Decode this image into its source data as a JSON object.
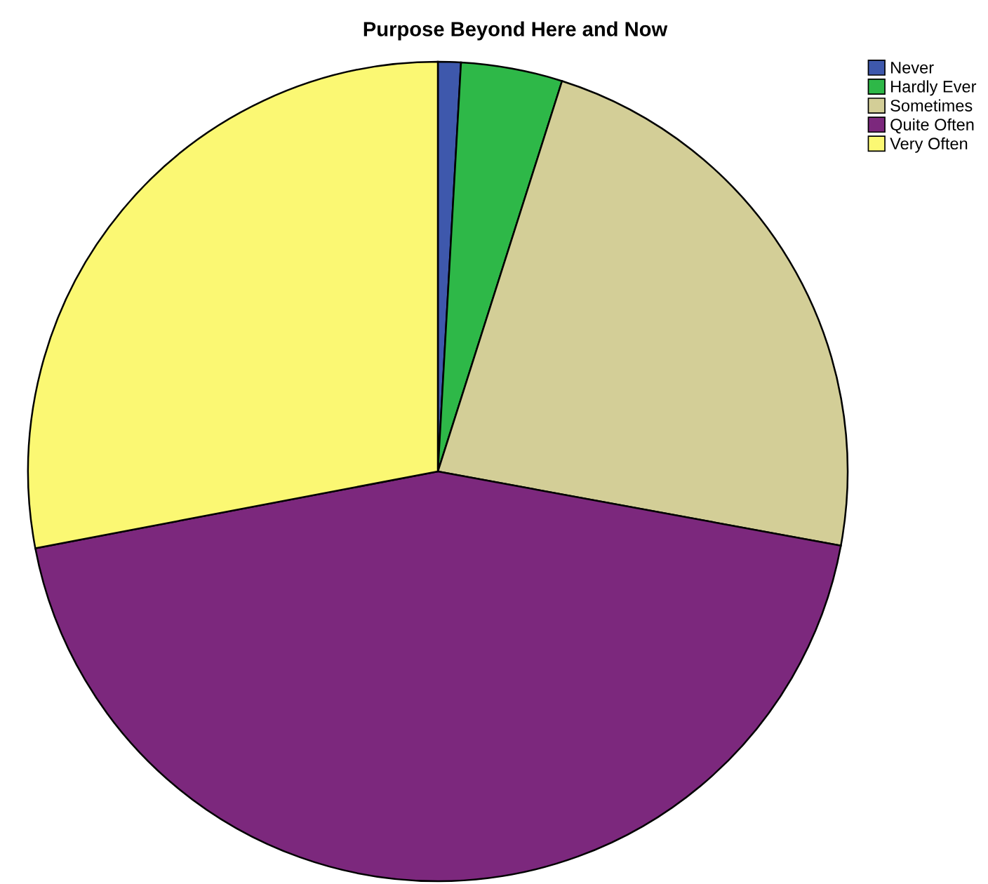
{
  "chart_data": {
    "type": "pie",
    "title": "Purpose Beyond Here and Now",
    "categories": [
      "Never",
      "Hardly Ever",
      "Sometimes",
      "Quite Often",
      "Very Often"
    ],
    "values": [
      0.9,
      4.0,
      23.0,
      44.1,
      28.0
    ],
    "colors": [
      "#3e58ac",
      "#2eb848",
      "#d3ce97",
      "#7c287d",
      "#fbf873"
    ],
    "legend": "top right"
  }
}
